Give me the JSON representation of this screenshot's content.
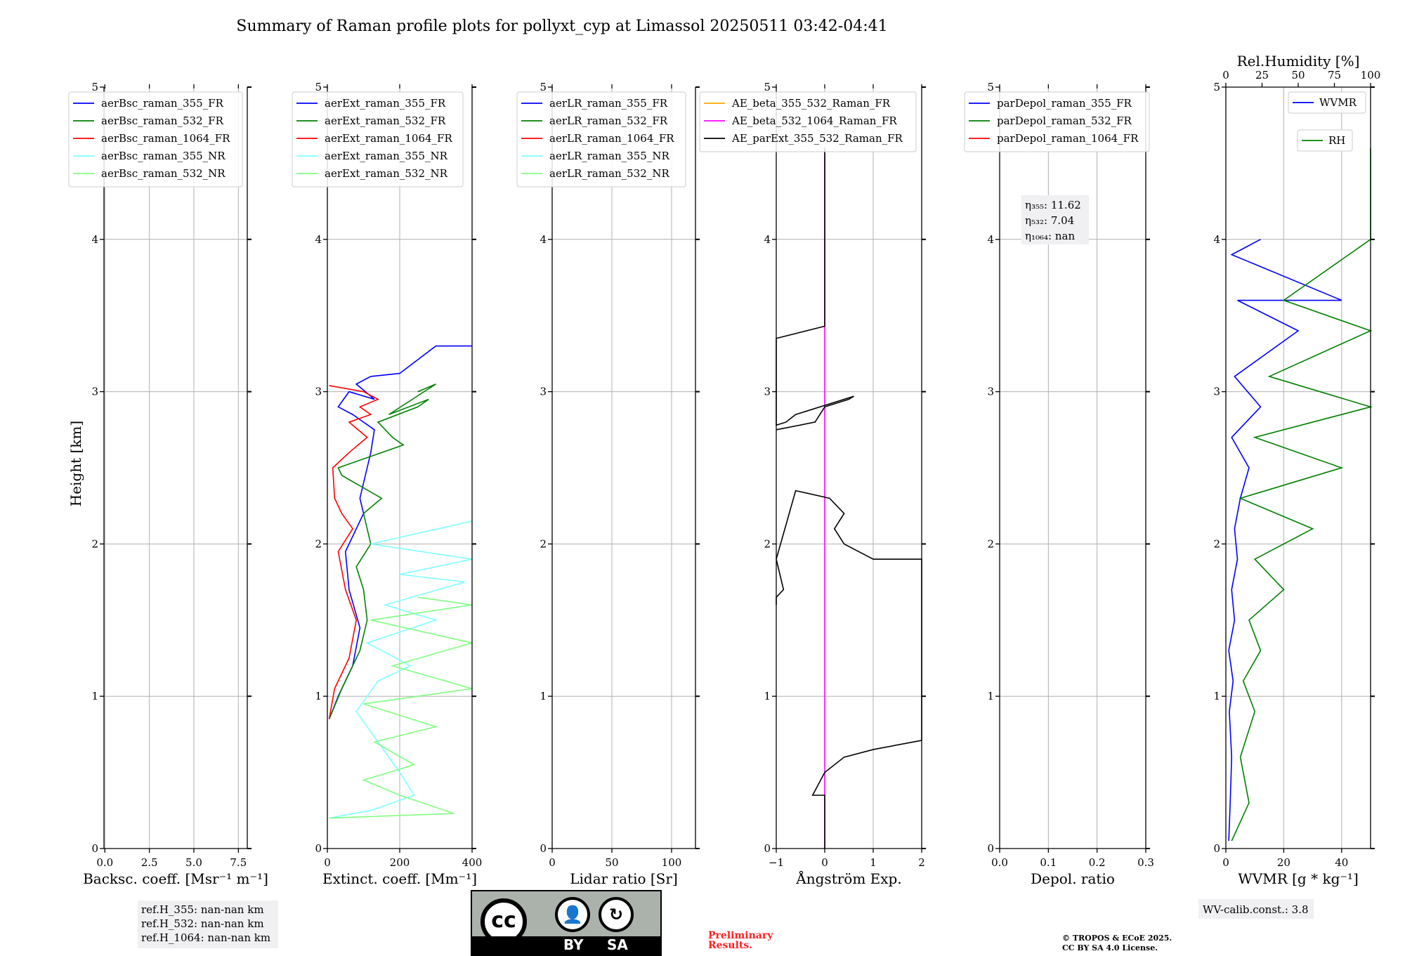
{
  "title": "Summary of Raman profile plots for pollyxt_cyp at Limassol 20250511 03:42-04:41",
  "colors": {
    "c355FR": "#0000ff",
    "c532FR": "#008000",
    "c1064FR": "#ff0000",
    "c355NR": "#7fffff",
    "c532NR": "#7fff7f",
    "orange": "#ffa500",
    "magenta": "#ff00ff",
    "black": "#000000",
    "grid": "#b0b0b0",
    "red_text": "#ff2020"
  },
  "y_axis": {
    "label": "Height [km]",
    "ticks": [
      "0",
      "1",
      "2",
      "3",
      "4",
      "5"
    ],
    "range": [
      0,
      5
    ]
  },
  "panels": [
    {
      "id": "bsc",
      "xlabel": "Backsc. coeff. [Msr⁻¹ m⁻¹]",
      "xlim": [
        -0.05,
        8
      ],
      "xticks": [
        0,
        2.5,
        5,
        7.5
      ],
      "xticklabels": [
        "0.0",
        "2.5",
        "5.0",
        "7.5"
      ],
      "legend": [
        {
          "label": "aerBsc_raman_355_FR",
          "color": "#0000ff"
        },
        {
          "label": "aerBsc_raman_532_FR",
          "color": "#008000"
        },
        {
          "label": "aerBsc_raman_1064_FR",
          "color": "#ff0000"
        },
        {
          "label": "aerBsc_raman_355_NR",
          "color": "#7fffff"
        },
        {
          "label": "aerBsc_raman_532_NR",
          "color": "#7fff7f"
        }
      ]
    },
    {
      "id": "ext",
      "xlabel": "Extinct. coeff. [Mm⁻¹]",
      "xlim": [
        0,
        400
      ],
      "xticks": [
        0,
        200,
        400
      ],
      "xticklabels": [
        "0",
        "200",
        "400"
      ],
      "legend": [
        {
          "label": "aerExt_raman_355_FR",
          "color": "#0000ff"
        },
        {
          "label": "aerExt_raman_532_FR",
          "color": "#008000"
        },
        {
          "label": "aerExt_raman_1064_FR",
          "color": "#ff0000"
        },
        {
          "label": "aerExt_raman_355_NR",
          "color": "#7fffff"
        },
        {
          "label": "aerExt_raman_532_NR",
          "color": "#7fff7f"
        }
      ]
    },
    {
      "id": "lr",
      "xlabel": "Lidar ratio [Sr]",
      "xlim": [
        0,
        120
      ],
      "xticks": [
        0,
        50,
        100
      ],
      "xticklabels": [
        "0",
        "50",
        "100"
      ],
      "legend": [
        {
          "label": "aerLR_raman_355_FR",
          "color": "#0000ff"
        },
        {
          "label": "aerLR_raman_532_FR",
          "color": "#008000"
        },
        {
          "label": "aerLR_raman_1064_FR",
          "color": "#ff0000"
        },
        {
          "label": "aerLR_raman_355_NR",
          "color": "#7fffff"
        },
        {
          "label": "aerLR_raman_532_NR",
          "color": "#7fff7f"
        }
      ]
    },
    {
      "id": "ae",
      "xlabel": "Ångström Exp.",
      "xlim": [
        -1,
        2
      ],
      "xticks": [
        -1,
        0,
        1,
        2
      ],
      "xticklabels": [
        "−1",
        "0",
        "1",
        "2"
      ],
      "legend": [
        {
          "label": "AE_beta_355_532_Raman_FR",
          "color": "#ffa500"
        },
        {
          "label": "AE_beta_532_1064_Raman_FR",
          "color": "#ff00ff"
        },
        {
          "label": "AE_parExt_355_532_Raman_FR",
          "color": "#000000"
        }
      ]
    },
    {
      "id": "dep",
      "xlabel": "Depol. ratio",
      "xlim": [
        0,
        0.3
      ],
      "xticks": [
        0,
        0.1,
        0.2,
        0.3
      ],
      "xticklabels": [
        "0.0",
        "0.1",
        "0.2",
        "0.3"
      ],
      "legend": [
        {
          "label": "parDepol_raman_355_FR",
          "color": "#0000ff"
        },
        {
          "label": "parDepol_raman_532_FR",
          "color": "#008000"
        },
        {
          "label": "parDepol_raman_1064_FR",
          "color": "#ff0000"
        }
      ]
    },
    {
      "id": "wv",
      "xlabel": "WVMR [g * kg⁻¹]",
      "xlim": [
        0,
        50
      ],
      "xticks": [
        0,
        20,
        40
      ],
      "xticklabels": [
        "0",
        "20",
        "40"
      ],
      "toplabel": "Rel.Humidity [%]",
      "top_xticks": [
        0,
        25,
        50,
        75,
        100
      ],
      "top_xticklabels": [
        "0",
        "25",
        "50",
        "75",
        "100"
      ],
      "legend": [
        {
          "label": "WVMR",
          "color": "#0000ff"
        },
        {
          "label": "RH",
          "color": "#008000"
        }
      ]
    }
  ],
  "eta_box": {
    "eta355": "η₃₅₅: 11.62",
    "eta532": "η₅₃₂: 7.04",
    "eta1064": "η₁₀₆₄: nan"
  },
  "refh": {
    "l355": "ref.H_355: nan-nan km",
    "l532": "ref.H_532: nan-nan km",
    "l1064": "ref.H_1064: nan-nan km"
  },
  "wv_calib": "WV-calib.const.: 3.8",
  "preliminary": [
    "Preliminary",
    "Results."
  ],
  "copyright": [
    "© TROPOS & ECoE 2025.",
    "CC BY SA 4.0 License."
  ],
  "license_badge": {
    "cc": "cc",
    "by": "BY",
    "sa": "SA"
  },
  "chart_data": [
    {
      "type": "line",
      "panel": "Backsc. coeff.",
      "series": [],
      "note": "no data plotted"
    },
    {
      "type": "line",
      "panel": "Extinct. coeff.",
      "series": [
        {
          "name": "aerExt_raman_355_FR",
          "x": [
            5,
            30,
            70,
            90,
            60,
            50,
            80,
            100,
            90,
            110,
            120,
            130,
            70,
            30,
            60,
            130,
            80,
            120,
            200,
            300,
            400
          ],
          "height": [
            0.85,
            1.0,
            1.2,
            1.45,
            1.7,
            1.95,
            2.1,
            2.2,
            2.3,
            2.5,
            2.6,
            2.75,
            2.85,
            2.9,
            3.0,
            2.95,
            3.05,
            3.1,
            3.12,
            3.3,
            3.3
          ]
        },
        {
          "name": "aerExt_raman_532_FR",
          "x": [
            5,
            40,
            90,
            110,
            100,
            80,
            120,
            100,
            150,
            40,
            30,
            210,
            180,
            140,
            250,
            280,
            170,
            300,
            250
          ],
          "height": [
            0.85,
            1.05,
            1.3,
            1.5,
            1.7,
            1.85,
            2.0,
            2.2,
            2.3,
            2.45,
            2.5,
            2.65,
            2.7,
            2.8,
            2.9,
            2.95,
            2.85,
            3.05,
            3.0
          ]
        },
        {
          "name": "aerExt_raman_1064_FR",
          "x": [
            5,
            20,
            60,
            80,
            50,
            30,
            70,
            40,
            20,
            15,
            60,
            110,
            60,
            120,
            90,
            140,
            100,
            5
          ],
          "height": [
            0.85,
            1.05,
            1.25,
            1.5,
            1.7,
            1.95,
            2.1,
            2.2,
            2.3,
            2.5,
            2.6,
            2.7,
            2.8,
            2.85,
            2.9,
            2.95,
            3.0,
            3.04
          ]
        },
        {
          "name": "aerExt_raman_355_NR",
          "x": [
            5,
            120,
            240,
            200,
            140,
            80,
            140,
            230,
            110,
            300,
            160,
            380,
            200,
            420,
            120,
            400
          ],
          "height": [
            0.2,
            0.25,
            0.35,
            0.5,
            0.7,
            0.9,
            1.1,
            1.2,
            1.35,
            1.5,
            1.6,
            1.75,
            1.8,
            1.9,
            2.0,
            2.15
          ]
        },
        {
          "name": "aerExt_raman_532_NR",
          "x": [
            5,
            350,
            200,
            100,
            240,
            130,
            300,
            100,
            400,
            180,
            400,
            120,
            400,
            250
          ],
          "height": [
            0.2,
            0.23,
            0.35,
            0.45,
            0.55,
            0.7,
            0.8,
            0.95,
            1.05,
            1.2,
            1.35,
            1.5,
            1.6,
            1.65
          ]
        }
      ]
    },
    {
      "type": "line",
      "panel": "Lidar ratio",
      "series": [],
      "note": "no data plotted"
    },
    {
      "type": "line",
      "panel": "Ångström Exp.",
      "series": [
        {
          "name": "AE_beta_532_1064_Raman_FR",
          "x": [
            0,
            0
          ],
          "height": [
            0,
            4.6
          ]
        },
        {
          "name": "AE_parExt_355_532_Raman_FR",
          "x": [
            0,
            0,
            -0.25,
            0,
            0.4,
            1.0,
            2.0,
            2.1,
            1.0,
            0.4,
            0.2,
            0.4,
            0.1,
            -0.6,
            -1,
            -0.85,
            -1,
            -1
          ],
          "height": [
            0,
            0.35,
            0.35,
            0.5,
            0.6,
            0.65,
            0.71,
            1.9,
            1.9,
            2.0,
            2.1,
            2.2,
            2.3,
            2.35,
            1.9,
            1.7,
            1.65,
            1.6
          ]
        },
        {
          "name": "AE_parExt_355_532_Raman_FR_upper",
          "x": [
            -1,
            -0.2,
            0,
            0.5,
            0.6,
            -0.6,
            -0.8,
            -1,
            -1,
            0,
            0
          ],
          "height": [
            2.75,
            2.8,
            2.9,
            2.95,
            2.97,
            2.85,
            2.8,
            2.78,
            3.35,
            3.43,
            4.6
          ]
        }
      ]
    },
    {
      "type": "line",
      "panel": "Depol. ratio",
      "series": [],
      "note": "no data plotted"
    },
    {
      "type": "line",
      "panel": "WVMR",
      "series": [
        {
          "name": "WVMR",
          "x": [
            1,
            1.5,
            2,
            1.2,
            2.5,
            1,
            3,
            2,
            4,
            3,
            5,
            8,
            2,
            12,
            3,
            25,
            4,
            40,
            2,
            12
          ],
          "height": [
            0.05,
            0.3,
            0.6,
            0.9,
            1.1,
            1.3,
            1.5,
            1.7,
            1.9,
            2.1,
            2.3,
            2.5,
            2.7,
            2.9,
            3.1,
            3.4,
            3.6,
            3.6,
            3.9,
            4.0
          ]
        },
        {
          "name": "RH_scaled_to_WVMR",
          "x": [
            2,
            8,
            5,
            10,
            6,
            12,
            8,
            20,
            10,
            30,
            5,
            40,
            10,
            50,
            15,
            50,
            20,
            50,
            50
          ],
          "height": [
            0.05,
            0.3,
            0.6,
            0.9,
            1.1,
            1.3,
            1.5,
            1.7,
            1.9,
            2.1,
            2.3,
            2.5,
            2.7,
            2.9,
            3.1,
            3.4,
            3.6,
            4.0,
            4.6
          ]
        }
      ]
    }
  ]
}
